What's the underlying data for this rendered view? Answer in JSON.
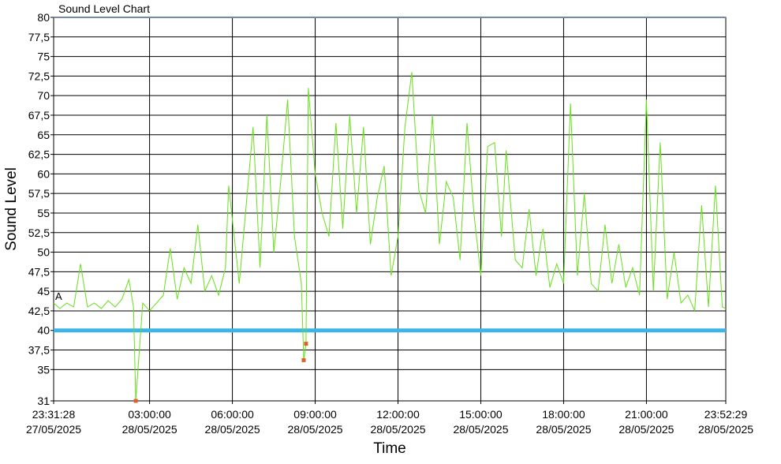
{
  "chart_data": {
    "type": "line",
    "title": "Sound Level Chart",
    "y_label": "Sound Level",
    "x_label": "Time",
    "annotation": "A",
    "color": "#66e01a",
    "grid": true,
    "x": [
      "2025-05-27T23:31:28",
      "2025-05-27T23:45:00",
      "2025-05-28T00:00:00",
      "2025-05-28T00:15:00",
      "2025-05-28T00:30:00",
      "2025-05-28T00:45:00",
      "2025-05-28T01:00:00",
      "2025-05-28T01:15:00",
      "2025-05-28T01:30:00",
      "2025-05-28T01:45:00",
      "2025-05-28T02:00:00",
      "2025-05-28T02:15:00",
      "2025-05-28T02:25:00",
      "2025-05-28T02:30:00",
      "2025-05-28T02:45:00",
      "2025-05-28T03:00:00",
      "2025-05-28T03:15:00",
      "2025-05-28T03:30:00",
      "2025-05-28T03:45:00",
      "2025-05-28T04:00:00",
      "2025-05-28T04:15:00",
      "2025-05-28T04:30:00",
      "2025-05-28T04:45:00",
      "2025-05-28T05:00:00",
      "2025-05-28T05:15:00",
      "2025-05-28T05:30:00",
      "2025-05-28T05:45:00",
      "2025-05-28T05:52:00",
      "2025-05-28T06:15:00",
      "2025-05-28T06:30:00",
      "2025-05-28T06:45:00",
      "2025-05-28T07:00:00",
      "2025-05-28T07:15:00",
      "2025-05-28T07:30:00",
      "2025-05-28T07:45:00",
      "2025-05-28T08:00:00",
      "2025-05-28T08:15:00",
      "2025-05-28T08:30:00",
      "2025-05-28T08:35:00",
      "2025-05-28T08:40:00",
      "2025-05-28T08:45:00",
      "2025-05-28T09:00:00",
      "2025-05-28T09:15:00",
      "2025-05-28T09:30:00",
      "2025-05-28T09:45:00",
      "2025-05-28T10:00:00",
      "2025-05-28T10:15:00",
      "2025-05-28T10:30:00",
      "2025-05-28T10:45:00",
      "2025-05-28T11:00:00",
      "2025-05-28T11:15:00",
      "2025-05-28T11:30:00",
      "2025-05-28T11:45:00",
      "2025-05-28T12:00:00",
      "2025-05-28T12:15:00",
      "2025-05-28T12:30:00",
      "2025-05-28T12:45:00",
      "2025-05-28T13:00:00",
      "2025-05-28T13:15:00",
      "2025-05-28T13:30:00",
      "2025-05-28T13:45:00",
      "2025-05-28T14:00:00",
      "2025-05-28T14:15:00",
      "2025-05-28T14:30:00",
      "2025-05-28T14:45:00",
      "2025-05-28T15:00:00",
      "2025-05-28T15:15:00",
      "2025-05-28T15:30:00",
      "2025-05-28T15:45:00",
      "2025-05-28T15:55:00",
      "2025-05-28T16:15:00",
      "2025-05-28T16:30:00",
      "2025-05-28T16:45:00",
      "2025-05-28T17:00:00",
      "2025-05-28T17:15:00",
      "2025-05-28T17:30:00",
      "2025-05-28T17:45:00",
      "2025-05-28T18:00:00",
      "2025-05-28T18:15:00",
      "2025-05-28T18:30:00",
      "2025-05-28T18:45:00",
      "2025-05-28T19:00:00",
      "2025-05-28T19:15:00",
      "2025-05-28T19:30:00",
      "2025-05-28T19:45:00",
      "2025-05-28T20:00:00",
      "2025-05-28T20:15:00",
      "2025-05-28T20:30:00",
      "2025-05-28T20:45:00",
      "2025-05-28T21:00:00",
      "2025-05-28T21:15:00",
      "2025-05-28T21:30:00",
      "2025-05-28T21:45:00",
      "2025-05-28T22:00:00",
      "2025-05-28T22:15:00",
      "2025-05-28T22:30:00",
      "2025-05-28T22:45:00",
      "2025-05-28T23:00:00",
      "2025-05-28T23:15:00",
      "2025-05-28T23:30:00",
      "2025-05-28T23:45:00",
      "2025-05-28T23:52:29"
    ],
    "values": [
      43.5,
      42.8,
      43.5,
      43,
      48.5,
      43,
      43.5,
      42.8,
      43.8,
      43,
      44,
      46.5,
      43,
      31,
      43.5,
      42.5,
      43.5,
      44.5,
      50.5,
      44,
      48,
      46,
      53.5,
      45,
      47,
      44.5,
      48,
      58.5,
      46,
      56,
      66,
      48,
      67.5,
      50,
      59,
      69.5,
      52,
      46,
      36.2,
      38.3,
      71,
      60,
      55,
      52,
      66.5,
      53,
      67.5,
      55,
      66,
      51,
      57,
      61,
      47,
      52,
      66,
      73,
      58,
      55,
      67.5,
      51,
      59,
      57,
      49,
      66.5,
      55,
      47,
      63.5,
      64,
      52,
      63,
      49,
      48,
      55.5,
      47,
      53,
      45.5,
      48.5,
      46,
      69,
      47,
      57.5,
      46,
      45,
      53.5,
      46,
      51,
      45.5,
      48,
      44.5,
      69.5,
      45,
      64,
      44,
      50,
      43.5,
      44.5,
      42.5,
      56,
      43,
      58.5,
      43,
      42.8
    ],
    "reference_line": {
      "value": 40,
      "color": "#3cb4e6"
    },
    "markers": {
      "color": "#e0602a",
      "x": [
        "2025-05-28T02:30:00",
        "2025-05-28T08:35:00",
        "2025-05-28T08:40:00"
      ],
      "values": [
        31,
        36.2,
        38.3
      ]
    },
    "xlim": [
      "2025-05-27T23:31:28",
      "2025-05-28T23:52:29"
    ],
    "xticks": [
      {
        "value": "2025-05-27T23:31:28",
        "label": [
          "23:31:28",
          "27/05/2025"
        ]
      },
      {
        "value": "2025-05-28T03:00:00",
        "label": [
          "03:00:00",
          "28/05/2025"
        ]
      },
      {
        "value": "2025-05-28T06:00:00",
        "label": [
          "06:00:00",
          "28/05/2025"
        ]
      },
      {
        "value": "2025-05-28T09:00:00",
        "label": [
          "09:00:00",
          "28/05/2025"
        ]
      },
      {
        "value": "2025-05-28T12:00:00",
        "label": [
          "12:00:00",
          "28/05/2025"
        ]
      },
      {
        "value": "2025-05-28T15:00:00",
        "label": [
          "15:00:00",
          "28/05/2025"
        ]
      },
      {
        "value": "2025-05-28T18:00:00",
        "label": [
          "18:00:00",
          "28/05/2025"
        ]
      },
      {
        "value": "2025-05-28T21:00:00",
        "label": [
          "21:00:00",
          "28/05/2025"
        ]
      },
      {
        "value": "2025-05-28T23:52:29",
        "label": [
          "23:52:29",
          "28/05/2025"
        ]
      }
    ],
    "ylim": [
      31,
      80
    ],
    "yticks": [
      31,
      35,
      {
        "value": 37.5,
        "label": "37,5"
      },
      40,
      {
        "value": 42.5,
        "label": "42,5"
      },
      45,
      {
        "value": 47.5,
        "label": "47,5"
      },
      50,
      {
        "value": 52.5,
        "label": "52,5"
      },
      55,
      {
        "value": 57.5,
        "label": "57,5"
      },
      60,
      {
        "value": 62.5,
        "label": "62,5"
      },
      65,
      {
        "value": 67.5,
        "label": "67,5"
      },
      70,
      {
        "value": 72.5,
        "label": "72,5"
      },
      75,
      {
        "value": 77.5,
        "label": "77,5"
      },
      80
    ]
  }
}
